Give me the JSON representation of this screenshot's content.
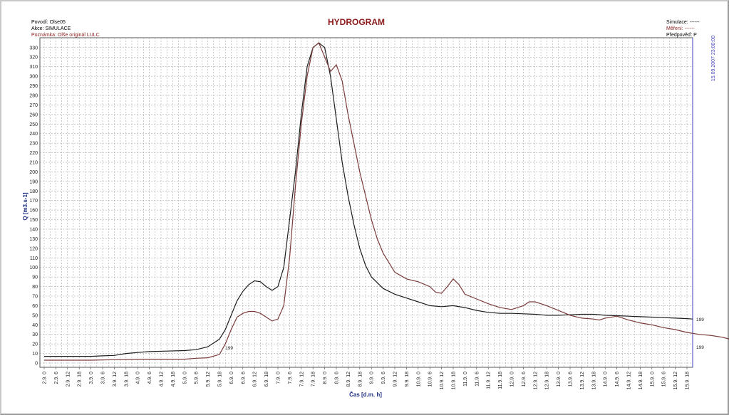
{
  "header": {
    "povodi": "Povodí: Olse05",
    "akce": "Akce: SIMULACE",
    "poznamka": "Poznámka: Olše originál LULC",
    "simulace": "Simulace: ------",
    "mereni": "Měření: ------",
    "predpoved": "Předpověď: P"
  },
  "chart_data": {
    "type": "line",
    "title": "HYDROGRAM",
    "xlabel": "Čas  [d.m. h]",
    "ylabel": "Q [m3.s-1]",
    "ylim": [
      0,
      335
    ],
    "yticks": [
      0,
      10,
      20,
      30,
      40,
      50,
      60,
      70,
      80,
      90,
      100,
      110,
      120,
      130,
      140,
      150,
      160,
      170,
      180,
      190,
      200,
      210,
      220,
      230,
      240,
      250,
      260,
      270,
      280,
      290,
      300,
      310,
      320,
      330
    ],
    "categories": [
      "2.9. 0",
      "2.9. 6",
      "2.9. 12",
      "2.9. 18",
      "3.9. 0",
      "3.9. 6",
      "3.9. 12",
      "3.9. 18",
      "4.9. 0",
      "4.9. 6",
      "4.9. 12",
      "4.9. 18",
      "5.9. 0",
      "5.9. 6",
      "5.9. 12",
      "5.9. 18",
      "6.9. 0",
      "6.9. 6",
      "6.9. 12",
      "6.9. 18",
      "7.9. 0",
      "7.9. 6",
      "7.9. 12",
      "7.9. 18",
      "8.9. 0",
      "8.9. 6",
      "8.9. 12",
      "8.9. 18",
      "9.9. 0",
      "9.9. 6",
      "9.9. 12",
      "9.9. 18",
      "10.9. 0",
      "10.9. 6",
      "10.9. 12",
      "10.9. 18",
      "11.9. 0",
      "11.9. 6",
      "11.9. 12",
      "11.9. 18",
      "12.9. 0",
      "12.9. 6",
      "12.9. 12",
      "12.9. 18",
      "13.9. 0",
      "13.9. 6",
      "13.9. 12",
      "13.9. 18",
      "14.9. 0",
      "14.9. 6",
      "14.9. 12",
      "14.9. 18",
      "15.9. 0",
      "15.9. 6",
      "15.9. 12",
      "15.9. 18"
    ],
    "vline_label": "15.09.2007 23:00:00",
    "point_labels": [
      "199",
      "199",
      "199"
    ],
    "series": [
      {
        "color": "#1e1e1e",
        "points": [
          [
            0,
            7
          ],
          [
            4,
            7
          ],
          [
            8,
            7
          ],
          [
            10,
            7.5
          ],
          [
            12,
            8
          ],
          [
            14,
            10
          ],
          [
            16,
            11
          ],
          [
            18,
            12
          ],
          [
            21,
            12.5
          ],
          [
            24,
            13
          ],
          [
            26,
            14
          ],
          [
            28,
            17
          ],
          [
            30,
            25
          ],
          [
            31,
            35
          ],
          [
            32,
            50
          ],
          [
            33,
            65
          ],
          [
            34,
            75
          ],
          [
            35,
            82
          ],
          [
            36,
            86
          ],
          [
            37,
            85
          ],
          [
            38,
            80
          ],
          [
            39,
            76
          ],
          [
            40,
            80
          ],
          [
            41,
            100
          ],
          [
            42,
            150
          ],
          [
            43,
            200
          ],
          [
            44,
            260
          ],
          [
            45,
            310
          ],
          [
            46,
            330
          ],
          [
            47,
            335
          ],
          [
            48,
            330
          ],
          [
            49,
            300
          ],
          [
            50,
            255
          ],
          [
            51,
            210
          ],
          [
            52,
            175
          ],
          [
            53,
            145
          ],
          [
            54,
            120
          ],
          [
            55,
            102
          ],
          [
            56,
            90
          ],
          [
            58,
            78
          ],
          [
            60,
            72
          ],
          [
            62,
            68
          ],
          [
            64,
            64
          ],
          [
            66,
            60
          ],
          [
            68,
            59
          ],
          [
            70,
            60
          ],
          [
            72,
            58
          ],
          [
            74,
            55
          ],
          [
            76,
            53
          ],
          [
            78,
            52
          ],
          [
            80,
            52
          ],
          [
            82,
            51.5
          ],
          [
            84,
            51
          ],
          [
            86,
            50
          ],
          [
            88,
            50
          ],
          [
            90,
            50.5
          ],
          [
            92,
            51
          ],
          [
            94,
            51
          ],
          [
            96,
            50
          ],
          [
            98,
            49.5
          ],
          [
            100,
            49
          ],
          [
            102,
            48.5
          ],
          [
            104,
            48
          ],
          [
            106,
            47.5
          ],
          [
            108,
            47
          ],
          [
            110,
            46.5
          ],
          [
            111,
            46
          ]
        ]
      },
      {
        "color": "#7a3b3b",
        "points": [
          [
            0,
            3
          ],
          [
            4,
            3
          ],
          [
            8,
            3
          ],
          [
            12,
            3.5
          ],
          [
            16,
            4
          ],
          [
            20,
            4
          ],
          [
            24,
            4
          ],
          [
            26,
            5
          ],
          [
            28,
            5.5
          ],
          [
            30,
            9
          ],
          [
            31,
            20
          ],
          [
            32,
            35
          ],
          [
            33,
            48
          ],
          [
            34,
            52
          ],
          [
            35,
            54
          ],
          [
            36,
            54
          ],
          [
            37,
            52
          ],
          [
            38,
            48
          ],
          [
            39,
            44
          ],
          [
            40,
            46
          ],
          [
            41,
            60
          ],
          [
            42,
            110
          ],
          [
            43,
            185
          ],
          [
            44,
            250
          ],
          [
            45,
            300
          ],
          [
            46,
            330
          ],
          [
            47,
            335
          ],
          [
            48,
            320
          ],
          [
            49,
            305
          ],
          [
            50,
            312
          ],
          [
            51,
            295
          ],
          [
            52,
            260
          ],
          [
            53,
            230
          ],
          [
            54,
            200
          ],
          [
            55,
            175
          ],
          [
            56,
            150
          ],
          [
            57,
            130
          ],
          [
            58,
            115
          ],
          [
            60,
            95
          ],
          [
            62,
            88
          ],
          [
            64,
            85
          ],
          [
            66,
            80
          ],
          [
            67,
            74
          ],
          [
            68,
            73
          ],
          [
            69,
            80
          ],
          [
            70,
            88
          ],
          [
            71,
            82
          ],
          [
            72,
            72
          ],
          [
            74,
            67
          ],
          [
            76,
            62
          ],
          [
            78,
            58
          ],
          [
            80,
            56
          ],
          [
            82,
            60
          ],
          [
            83,
            64
          ],
          [
            84,
            64
          ],
          [
            86,
            60
          ],
          [
            88,
            55
          ],
          [
            90,
            50
          ],
          [
            92,
            47
          ],
          [
            94,
            46
          ],
          [
            95,
            45
          ],
          [
            96,
            47
          ],
          [
            98,
            49
          ],
          [
            100,
            45
          ],
          [
            102,
            42
          ],
          [
            104,
            40
          ],
          [
            106,
            37
          ],
          [
            108,
            35
          ],
          [
            110,
            32
          ],
          [
            112,
            30
          ],
          [
            114,
            29
          ],
          [
            116,
            27
          ],
          [
            118,
            24
          ],
          [
            120,
            22
          ],
          [
            122,
            21
          ],
          [
            124,
            20
          ],
          [
            125,
            19
          ]
        ]
      }
    ]
  },
  "colors": {
    "title": "#8b1a1a",
    "axis_label": "#1e2f80",
    "grid": "#9a9a9a",
    "vline": "#4040c0"
  }
}
